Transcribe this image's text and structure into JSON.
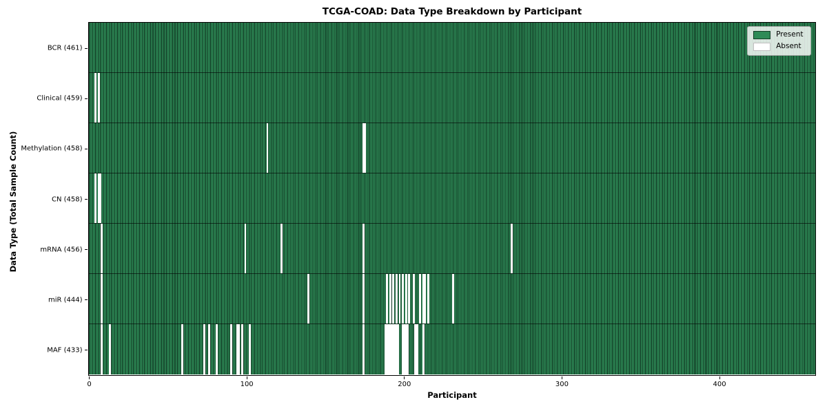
{
  "chart_data": {
    "type": "heatmap",
    "title": "TCGA-COAD: Data Type Breakdown by Participant",
    "xlabel": "Participant",
    "ylabel": "Data Type (Total Sample Count)",
    "n_participants": 461,
    "x_range": [
      0,
      461
    ],
    "x_ticks": [
      0,
      100,
      200,
      300,
      400
    ],
    "grid": false,
    "legend": {
      "position": "upper right",
      "entries": [
        {
          "label": "Present",
          "color": "#2e8b57",
          "edge": "rgba(0,0,0,0.55)"
        },
        {
          "label": "Absent",
          "color": "#ffffff",
          "edge": "rgba(0,0,0,0.25)"
        }
      ]
    },
    "colors": {
      "present": "#2e8b57",
      "absent": "#ffffff",
      "cell_edge": "#0d2f1d",
      "row_separator": "rgba(0,0,0,0.60)",
      "spine": "#000000",
      "figure_bg": "#ffffff"
    },
    "rows": [
      {
        "label": "BCR (461)",
        "data_type": "BCR",
        "count": 461,
        "absent_indices": []
      },
      {
        "label": "Clinical (459)",
        "data_type": "Clinical",
        "count": 459,
        "absent_indices": [
          4,
          6
        ]
      },
      {
        "label": "Methylation (458)",
        "data_type": "Methylation",
        "count": 458,
        "absent_indices": [
          113,
          174,
          175
        ]
      },
      {
        "label": "CN (458)",
        "data_type": "CN",
        "count": 458,
        "absent_indices": [
          4,
          6,
          7
        ]
      },
      {
        "label": "mRNA (456)",
        "data_type": "mRNA",
        "count": 456,
        "absent_indices": [
          8,
          99,
          122,
          174,
          268
        ]
      },
      {
        "label": "miR (444)",
        "data_type": "miR",
        "count": 444,
        "absent_indices": [
          8,
          139,
          174,
          189,
          191,
          193,
          195,
          197,
          199,
          201,
          203,
          206,
          210,
          212,
          213,
          215,
          231
        ]
      },
      {
        "label": "MAF (433)",
        "data_type": "MAF",
        "count": 433,
        "absent_indices": [
          8,
          13,
          59,
          73,
          76,
          81,
          90,
          94,
          95,
          97,
          102,
          174,
          188,
          189,
          190,
          191,
          192,
          193,
          194,
          195,
          196,
          199,
          200,
          201,
          202,
          207,
          208,
          212
        ]
      }
    ]
  }
}
